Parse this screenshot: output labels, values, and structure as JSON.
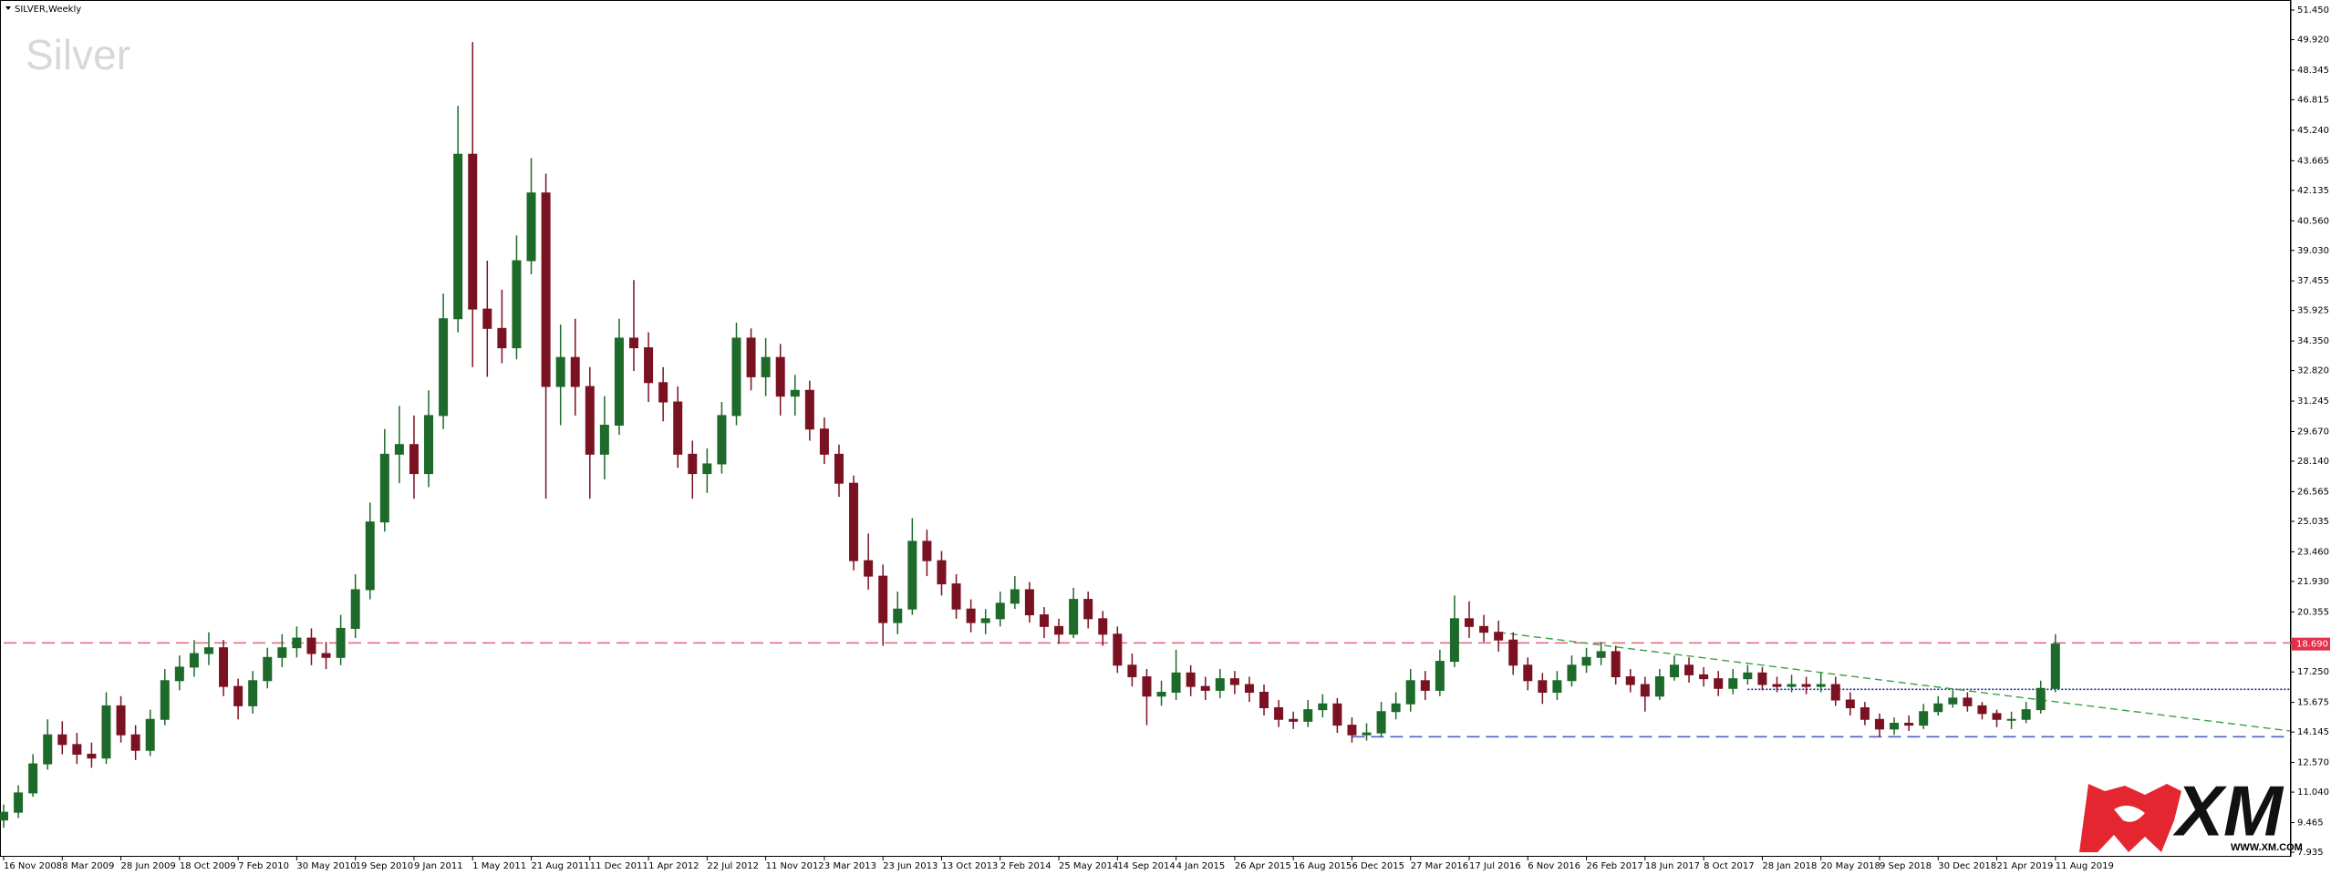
{
  "chart_data": {
    "type": "candlestick",
    "title": "SILVER,Weekly",
    "watermark": "Silver",
    "categories": [
      "16 Nov 2008",
      null,
      null,
      null,
      "8 Mar 2009",
      null,
      null,
      null,
      "28 Jun 2009",
      null,
      null,
      null,
      "18 Oct 2009",
      null,
      null,
      null,
      "7 Feb 2010",
      null,
      null,
      null,
      "30 May 2010",
      null,
      null,
      null,
      "19 Sep 2010",
      null,
      null,
      null,
      "9 Jan 2011",
      null,
      null,
      null,
      "1 May 2011",
      null,
      null,
      null,
      "21 Aug 2011",
      null,
      null,
      null,
      "11 Dec 2011",
      null,
      null,
      null,
      "1 Apr 2012",
      null,
      null,
      null,
      "22 Jul 2012",
      null,
      null,
      null,
      "11 Nov 2012",
      null,
      null,
      null,
      "3 Mar 2013",
      null,
      null,
      null,
      "23 Jun 2013",
      null,
      null,
      null,
      "13 Oct 2013",
      null,
      null,
      null,
      "2 Feb 2014",
      null,
      null,
      null,
      "25 May 2014",
      null,
      null,
      null,
      "14 Sep 2014",
      null,
      null,
      null,
      "4 Jan 2015",
      null,
      null,
      null,
      "26 Apr 2015",
      null,
      null,
      null,
      "16 Aug 2015",
      null,
      null,
      null,
      "6 Dec 2015",
      null,
      null,
      null,
      "27 Mar 2016",
      null,
      null,
      null,
      "17 Jul 2016",
      null,
      null,
      null,
      "6 Nov 2016",
      null,
      null,
      null,
      "26 Feb 2017",
      null,
      null,
      null,
      "18 Jun 2017",
      null,
      null,
      null,
      "8 Oct 2017",
      null,
      null,
      null,
      "28 Jan 2018",
      null,
      null,
      null,
      "20 May 2018",
      null,
      null,
      null,
      "9 Sep 2018",
      null,
      null,
      null,
      "30 Dec 2018",
      null,
      null,
      null,
      "21 Apr 2019",
      null,
      null,
      null,
      "11 Aug 2019"
    ],
    "open": [
      9.6,
      10.0,
      11.0,
      12.5,
      14.0,
      13.5,
      13.0,
      12.8,
      15.5,
      14.0,
      13.2,
      14.8,
      16.8,
      17.5,
      18.2,
      18.5,
      16.5,
      15.5,
      16.8,
      18.0,
      18.5,
      19.0,
      18.2,
      18.0,
      19.5,
      21.5,
      25.0,
      28.5,
      29.0,
      27.5,
      30.5,
      35.5,
      44.0,
      36.0,
      35.0,
      34.0,
      38.5,
      42.0,
      32.0,
      33.5,
      32.0,
      28.5,
      30.0,
      34.5,
      34.0,
      32.2,
      31.2,
      28.5,
      27.5,
      28.0,
      30.5,
      34.5,
      32.5,
      33.5,
      31.5,
      31.8,
      29.8,
      28.5,
      27.0,
      23.0,
      22.2,
      19.8,
      20.5,
      24.0,
      23.0,
      21.8,
      20.5,
      19.8,
      20.0,
      20.8,
      21.5,
      20.2,
      19.6,
      19.2,
      21.0,
      20.0,
      19.2,
      17.6,
      17.0,
      16.0,
      16.2,
      17.2,
      16.5,
      16.3,
      16.9,
      16.6,
      16.2,
      15.4,
      14.8,
      14.7,
      15.3,
      15.6,
      14.5,
      14.0,
      14.1,
      15.2,
      15.6,
      16.8,
      16.3,
      17.8,
      20.0,
      19.6,
      19.3,
      18.9,
      17.6,
      16.8,
      16.2,
      16.8,
      17.6,
      18.0,
      18.3,
      17.0,
      16.6,
      16.0,
      17.0,
      17.6,
      17.1,
      16.9,
      16.4,
      16.9,
      17.2,
      16.6,
      16.5,
      16.6,
      16.5,
      16.6,
      15.8,
      15.4,
      14.8,
      14.3,
      14.6,
      14.5,
      15.2,
      15.6,
      15.9,
      15.5,
      15.1,
      14.8,
      14.8,
      15.3,
      16.4
    ],
    "high": [
      10.4,
      11.4,
      13.0,
      14.8,
      14.7,
      14.1,
      13.6,
      16.2,
      16.0,
      14.5,
      15.3,
      17.4,
      18.1,
      18.9,
      19.3,
      18.9,
      16.9,
      17.3,
      18.5,
      19.2,
      19.6,
      19.5,
      18.8,
      20.2,
      22.3,
      26.0,
      29.8,
      31.0,
      30.5,
      31.8,
      36.8,
      46.5,
      49.8,
      38.5,
      37.0,
      39.8,
      43.8,
      43.0,
      35.2,
      35.5,
      33.0,
      31.5,
      35.5,
      37.5,
      34.8,
      33.0,
      32.0,
      29.2,
      28.8,
      31.2,
      35.3,
      35.0,
      34.5,
      34.2,
      32.6,
      32.3,
      30.4,
      29.0,
      27.4,
      24.4,
      22.8,
      21.4,
      25.2,
      24.6,
      23.5,
      22.3,
      21.0,
      20.5,
      21.4,
      22.2,
      21.9,
      20.6,
      20.0,
      21.6,
      21.4,
      20.4,
      19.6,
      18.2,
      17.4,
      16.8,
      18.4,
      17.6,
      17.0,
      17.4,
      17.3,
      17.0,
      16.6,
      15.8,
      15.2,
      15.8,
      16.1,
      15.9,
      14.9,
      14.6,
      15.7,
      16.2,
      17.4,
      17.3,
      18.4,
      21.2,
      20.9,
      20.2,
      19.9,
      19.3,
      18.0,
      17.2,
      17.3,
      18.1,
      18.5,
      18.8,
      18.6,
      17.4,
      17.0,
      17.4,
      18.1,
      18.0,
      17.5,
      17.3,
      17.4,
      17.6,
      17.5,
      17.0,
      17.1,
      17.0,
      17.2,
      17.0,
      16.2,
      15.7,
      15.1,
      14.9,
      15.0,
      15.6,
      16.0,
      16.3,
      16.2,
      15.7,
      15.3,
      15.2,
      15.7,
      16.8,
      19.2
    ],
    "low": [
      9.2,
      9.7,
      10.8,
      12.2,
      13.0,
      12.5,
      12.3,
      12.5,
      13.6,
      12.7,
      12.9,
      14.5,
      16.3,
      17.0,
      17.6,
      16.0,
      14.8,
      15.1,
      16.4,
      17.5,
      18.0,
      17.6,
      17.4,
      17.6,
      19.0,
      21.0,
      24.5,
      27.0,
      26.2,
      26.8,
      29.8,
      34.8,
      33.0,
      32.5,
      33.2,
      33.4,
      37.8,
      26.2,
      30.0,
      30.5,
      26.2,
      27.2,
      29.5,
      32.8,
      31.2,
      30.2,
      27.8,
      26.2,
      26.5,
      27.5,
      30.0,
      31.8,
      31.5,
      30.5,
      30.5,
      29.2,
      28.0,
      26.3,
      22.5,
      21.5,
      18.6,
      19.2,
      20.2,
      22.2,
      21.2,
      20.0,
      19.3,
      19.2,
      19.6,
      20.5,
      19.8,
      19.0,
      18.7,
      19.0,
      19.5,
      18.6,
      17.2,
      16.5,
      14.5,
      15.5,
      15.8,
      16.0,
      15.8,
      15.9,
      16.1,
      15.7,
      15.0,
      14.4,
      14.3,
      14.4,
      14.9,
      14.1,
      13.6,
      13.7,
      13.9,
      14.8,
      15.2,
      15.8,
      16.0,
      17.5,
      19.0,
      18.8,
      18.3,
      17.1,
      16.3,
      15.6,
      15.8,
      16.5,
      17.2,
      17.6,
      16.6,
      16.2,
      15.2,
      15.8,
      16.8,
      16.7,
      16.5,
      16.0,
      16.1,
      16.6,
      16.3,
      16.2,
      16.2,
      16.1,
      16.2,
      15.5,
      15.0,
      14.5,
      13.9,
      14.0,
      14.2,
      14.3,
      15.0,
      15.4,
      15.2,
      14.8,
      14.4,
      14.3,
      14.6,
      15.1,
      16.2
    ],
    "close": [
      10.0,
      11.0,
      12.5,
      14.0,
      13.5,
      13.0,
      12.8,
      15.5,
      14.0,
      13.2,
      14.8,
      16.8,
      17.5,
      18.2,
      18.5,
      16.5,
      15.5,
      16.8,
      18.0,
      18.5,
      19.0,
      18.2,
      18.0,
      19.5,
      21.5,
      25.0,
      28.5,
      29.0,
      27.5,
      30.5,
      35.5,
      44.0,
      36.0,
      35.0,
      34.0,
      38.5,
      42.0,
      32.0,
      33.5,
      32.0,
      28.5,
      30.0,
      34.5,
      34.0,
      32.2,
      31.2,
      28.5,
      27.5,
      28.0,
      30.5,
      34.5,
      32.5,
      33.5,
      31.5,
      31.8,
      29.8,
      28.5,
      27.0,
      23.0,
      22.2,
      19.8,
      20.5,
      24.0,
      23.0,
      21.8,
      20.5,
      19.8,
      20.0,
      20.8,
      21.5,
      20.2,
      19.6,
      19.2,
      21.0,
      20.0,
      19.2,
      17.6,
      17.0,
      16.0,
      16.2,
      17.2,
      16.5,
      16.3,
      16.9,
      16.6,
      16.2,
      15.4,
      14.8,
      14.7,
      15.3,
      15.6,
      14.5,
      14.0,
      14.1,
      15.2,
      15.6,
      16.8,
      16.3,
      17.8,
      20.0,
      19.6,
      19.3,
      18.9,
      17.6,
      16.8,
      16.2,
      16.8,
      17.6,
      18.0,
      18.3,
      17.0,
      16.6,
      16.0,
      17.0,
      17.6,
      17.1,
      16.9,
      16.4,
      16.9,
      17.2,
      16.6,
      16.5,
      16.6,
      16.5,
      16.6,
      15.8,
      15.4,
      14.8,
      14.3,
      14.6,
      14.5,
      15.2,
      15.6,
      15.9,
      15.5,
      15.1,
      14.8,
      14.8,
      15.3,
      16.4,
      18.69
    ],
    "colors": {
      "up": "#1d6a2a",
      "down": "#7a1222"
    },
    "ylim": [
      7.7,
      51.97
    ],
    "yticks": [
      7.935,
      9.465,
      {
        "value": 11.04,
        "label": "11.040"
      },
      {
        "value": 12.57,
        "label": "12.570"
      },
      14.145,
      15.675,
      {
        "value": 17.25,
        "label": "17.250"
      },
      {
        "value": 18.78,
        "label": "18.780"
      },
      20.355,
      {
        "value": 21.93,
        "label": "21.930"
      },
      {
        "value": 23.46,
        "label": "23.460"
      },
      25.035,
      26.565,
      {
        "value": 28.14,
        "label": "28.140"
      },
      {
        "value": 29.67,
        "label": "29.670"
      },
      31.245,
      {
        "value": 32.82,
        "label": "32.820"
      },
      {
        "value": 34.35,
        "label": "34.350"
      },
      35.925,
      37.455,
      {
        "value": 39.03,
        "label": "39.030"
      },
      {
        "value": 40.56,
        "label": "40.560"
      },
      42.135,
      43.665,
      {
        "value": 45.24,
        "label": "45.240"
      },
      46.815,
      48.345,
      {
        "value": 49.92,
        "label": "49.920"
      },
      {
        "value": 51.45,
        "label": "51.450"
      }
    ],
    "current_price": {
      "value": 18.69,
      "label": "18.690"
    },
    "hlines": [
      {
        "value": 18.75,
        "start": 0,
        "color": "#e8607a",
        "dash": "long"
      },
      {
        "value": 16.35,
        "start": 119,
        "color": "#1c2a8c",
        "dash": "dot"
      },
      {
        "value": 13.9,
        "start": 92,
        "color": "#5060c0",
        "dash": "long"
      }
    ],
    "trendline": {
      "x": [
        102,
        156
      ],
      "values": [
        19.3,
        14.2
      ],
      "color": "#3aa040"
    },
    "logo": {
      "brand": "XM",
      "url": "WWW.XM.COM",
      "color": "#e3262f"
    }
  }
}
